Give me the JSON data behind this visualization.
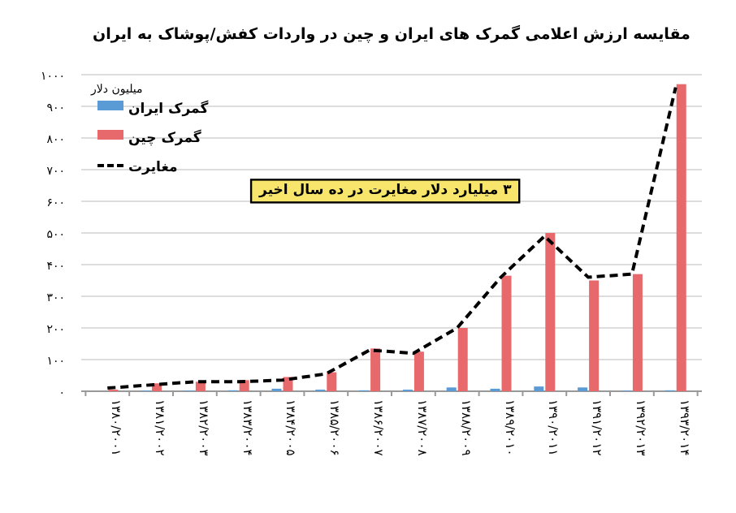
{
  "chart_data": {
    "type": "bar",
    "title": "مقایسه ارزش اعلامی گمرک های ایران و چین در واردات کفش/پوشاک به ایران",
    "ylabel": "میلیون دلار",
    "categories": [
      "۱۳۸۰/۲۰۰۱",
      "۱۳۸۱/۲۰۰۲",
      "۱۳۸۲/۲۰۰۳",
      "۱۳۸۳/۲۰۰۴",
      "۱۳۸۴/۲۰۰۵",
      "۱۳۸۵/۲۰۰۶",
      "۱۳۸۶/۲۰۰۷",
      "۱۳۸۷/۲۰۰۸",
      "۱۳۸۸/۲۰۰۹",
      "۱۳۸۹/۲۰۱۰",
      "۱۳۹۰/۲۰۱۱",
      "۱۳۹۱/۲۰۱۲",
      "۱۳۹۲/۲۰۱۳",
      "۱۳۹۳/۲۰۱۴"
    ],
    "series": [
      {
        "name": "گمرک ایران",
        "color": "#5b9bd5",
        "values": [
          null,
          2,
          2,
          3,
          8,
          5,
          3,
          5,
          12,
          8,
          15,
          12,
          2,
          3
        ]
      },
      {
        "name": "گمرک چین",
        "color": "#e8696b",
        "values": [
          5,
          25,
          30,
          35,
          45,
          60,
          135,
          125,
          200,
          365,
          500,
          350,
          370,
          970
        ]
      },
      {
        "name": "مغایرت",
        "type": "line",
        "color": "#000000",
        "line_style": "dashed",
        "marker": "none",
        "values": [
          10,
          20,
          30,
          30,
          35,
          55,
          130,
          120,
          200,
          360,
          490,
          360,
          370,
          960
        ]
      }
    ],
    "ylim": [
      0,
      1000
    ],
    "yticks": [
      {
        "value": 0,
        "label": "۰"
      },
      {
        "value": 100,
        "label": "۱۰۰"
      },
      {
        "value": 200,
        "label": "۲۰۰"
      },
      {
        "value": 300,
        "label": "۳۰۰"
      },
      {
        "value": 400,
        "label": "۴۰۰"
      },
      {
        "value": 500,
        "label": "۵۰۰"
      },
      {
        "value": 600,
        "label": "۶۰۰"
      },
      {
        "value": 700,
        "label": "۷۰۰"
      },
      {
        "value": 800,
        "label": "۸۰۰"
      },
      {
        "value": 900,
        "label": "۹۰۰"
      },
      {
        "value": 1000,
        "label": "۱۰۰۰"
      }
    ],
    "grid": "y",
    "legend": "top left",
    "annotations": [
      "۳ میلیارد دلار مغایرت در ده سال اخیر"
    ]
  }
}
